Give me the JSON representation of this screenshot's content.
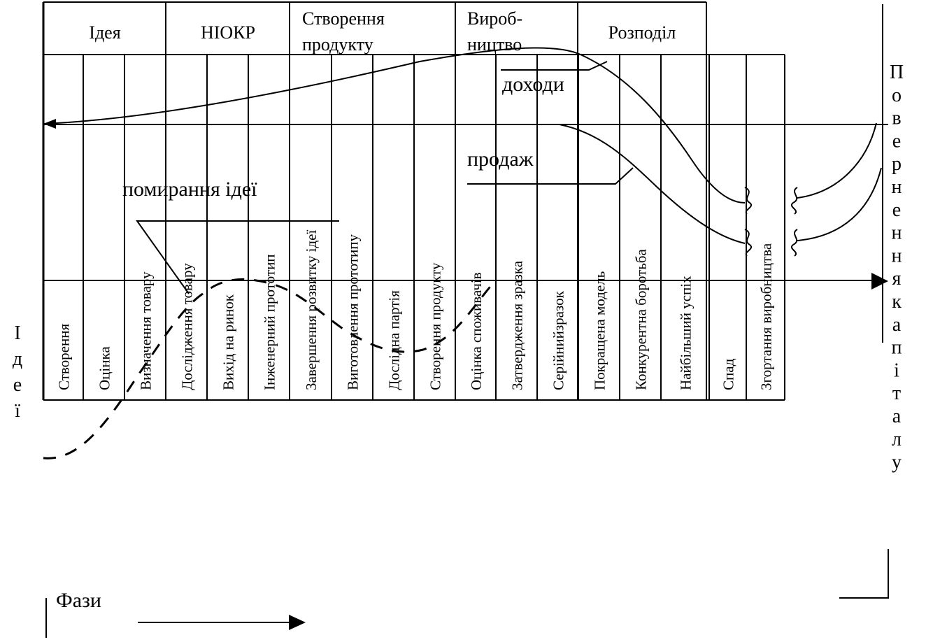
{
  "phases": [
    "Ідея",
    "НІОКР",
    "Створення продукту",
    "Вироб-ництво",
    "Розподіл"
  ],
  "stages": [
    "Створення",
    "Оцінка",
    "Визначення товару",
    "Дослідження товару",
    "Вихід на ринок",
    "Інженерний прототип",
    "Завершення розвитку ідеї",
    "Виготовлення прототипу",
    "Дослідна партія",
    "Створення продукту",
    "Оцінка споживачів",
    "Затвердження зразка",
    "Серійнийзразок",
    "Покращена модель",
    "Конкурентна боротьба",
    "Найбільший успіх",
    "Спад",
    "Згортання виробництва"
  ],
  "labels": {
    "income": "доходи",
    "sales": "продаж",
    "idea_death": "помирання ідеї",
    "phases_axis": "Фази",
    "idea_vertical": "Ідеї",
    "capital_return": "Повернення капіталу"
  }
}
